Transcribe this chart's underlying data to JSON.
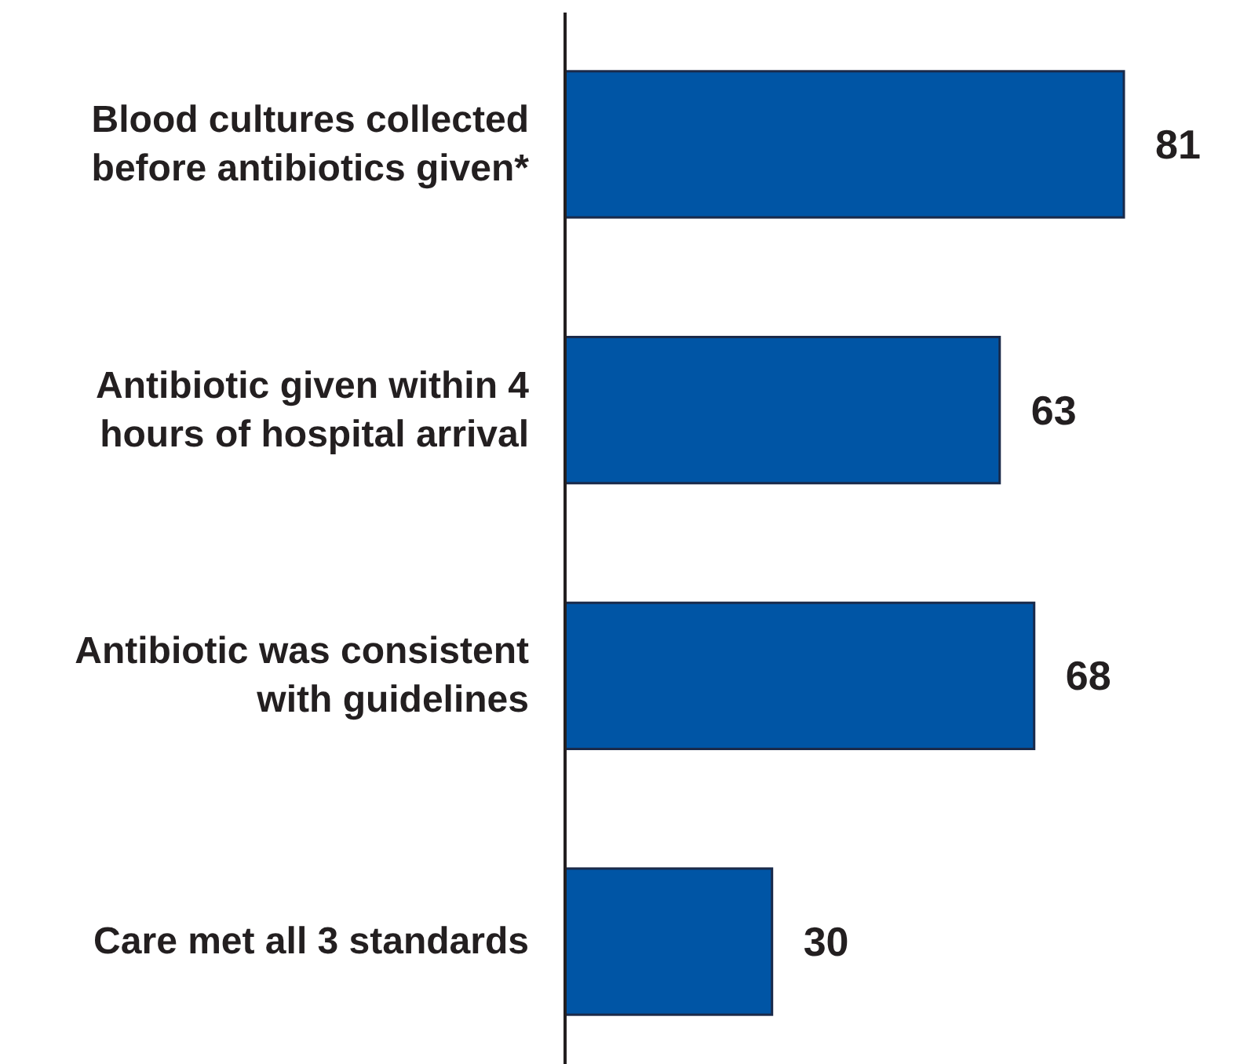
{
  "chart_data": {
    "type": "bar",
    "orientation": "horizontal",
    "categories": [
      "Blood cultures collected before antibiotics given*",
      "Antibiotic given within 4 hours of hospital arrival",
      "Antibiotic was consistent with guidelines",
      "Care met all 3 standards"
    ],
    "values": [
      81,
      63,
      68,
      30
    ],
    "color": "#0055a5",
    "data_labels": true
  }
}
